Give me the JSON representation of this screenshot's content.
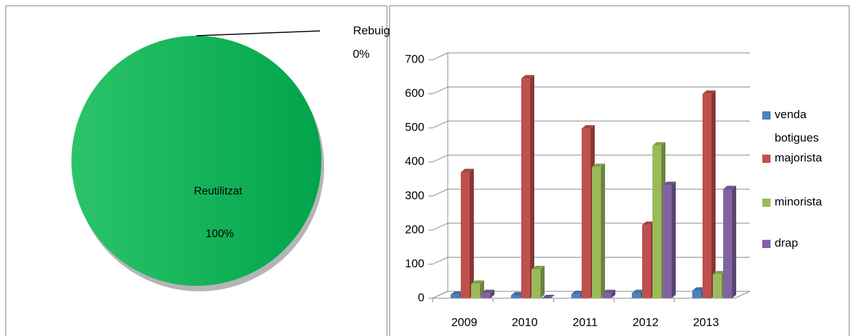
{
  "chart_data": [
    {
      "type": "pie",
      "categories": [
        "Rebuig",
        "Reutilitzat"
      ],
      "values": [
        0,
        100
      ],
      "value_labels": [
        "0%",
        "100%"
      ],
      "colors": [
        "#ffffff",
        "#14a550"
      ]
    },
    {
      "type": "bar",
      "categories": [
        "2009",
        "2010",
        "2011",
        "2012",
        "2013"
      ],
      "series": [
        {
          "name": "venda botigues",
          "color": "#4f81bd",
          "values": [
            10,
            8,
            12,
            15,
            22
          ]
        },
        {
          "name": "majorista",
          "color": "#c0504d",
          "values": [
            370,
            645,
            498,
            215,
            600
          ]
        },
        {
          "name": "minorista",
          "color": "#9bbb59",
          "values": [
            42,
            85,
            385,
            448,
            70
          ]
        },
        {
          "name": "drap",
          "color": "#8064a2",
          "values": [
            15,
            0,
            15,
            332,
            320
          ]
        }
      ],
      "ylim": [
        0,
        700
      ],
      "yticks": [
        0,
        100,
        200,
        300,
        400,
        500,
        600,
        700
      ],
      "grid": true,
      "legend": "right"
    }
  ]
}
